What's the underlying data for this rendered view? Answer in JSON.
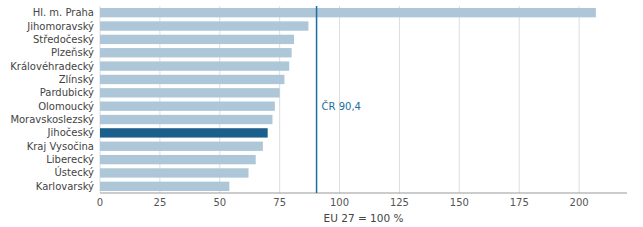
{
  "chart_data": {
    "type": "bar",
    "orientation": "horizontal",
    "categories": [
      "Hl. m. Praha",
      "Jihomoravský",
      "Středočeský",
      "Plzeňský",
      "Královéhradecký",
      "Zlínský",
      "Pardubický",
      "Olomoucký",
      "Moravskoslezský",
      "Jihočeský",
      "Kraj Vysočina",
      "Liberecký",
      "Ústecký",
      "Karlovarský"
    ],
    "values": [
      207,
      87,
      81,
      80,
      79,
      77,
      75,
      73,
      72,
      70,
      68,
      65,
      62,
      54
    ],
    "colors": [
      "#adc6d8",
      "#adc6d8",
      "#adc6d8",
      "#adc6d8",
      "#adc6d8",
      "#adc6d8",
      "#adc6d8",
      "#adc6d8",
      "#adc6d8",
      "#1b5f8c",
      "#adc6d8",
      "#adc6d8",
      "#adc6d8",
      "#adc6d8"
    ],
    "x_label": "EU 27 = 100 %",
    "xlim": [
      0,
      220
    ],
    "xticks": [
      0,
      25,
      50,
      75,
      100,
      125,
      150,
      175,
      200
    ],
    "grid": true,
    "annotations": [
      {
        "text": "ČR 90,4",
        "x": 90.4,
        "color": "#1a6fa0"
      }
    ]
  }
}
